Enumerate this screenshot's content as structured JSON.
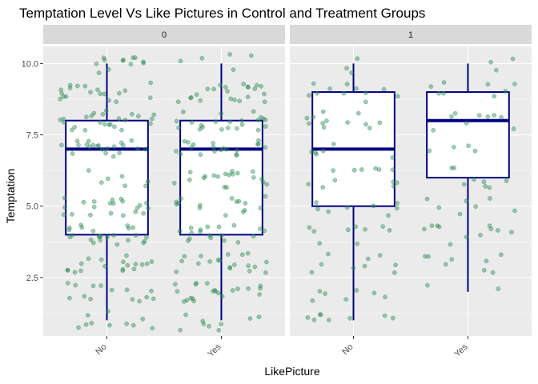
{
  "chart_data": {
    "type": "boxplot",
    "title": "Temptation Level Vs Like Pictures in Control and Treatment Groups",
    "xlabel": "LikePicture",
    "ylabel": "Temptation",
    "categories": [
      "No",
      "Yes"
    ],
    "yticks": [
      2.5,
      5.0,
      7.5,
      10.0
    ],
    "ytick_labels": [
      "2.5",
      "5.0",
      "7.5",
      "10.0"
    ],
    "ylim": [
      0.45,
      10.6
    ],
    "grid": true,
    "colors": {
      "panel_bg": "#ebebeb",
      "grid": "#ffffff",
      "strip_bg": "#d9d9d9",
      "box_line": "#000080",
      "box_fill": "#ffffff",
      "points": "#2e8b57"
    },
    "panels": [
      {
        "label": "0",
        "boxes": [
          {
            "category": "No",
            "min": 1.0,
            "q1": 4.0,
            "median": 7.0,
            "q3": 8.0,
            "max": 10.0
          },
          {
            "category": "Yes",
            "min": 1.0,
            "q1": 4.0,
            "median": 7.0,
            "q3": 8.0,
            "max": 10.0
          }
        ],
        "point_counts": [
          170,
          170
        ]
      },
      {
        "label": "1",
        "boxes": [
          {
            "category": "No",
            "min": 1.0,
            "q1": 5.0,
            "median": 7.0,
            "q3": 9.0,
            "max": 10.0
          },
          {
            "category": "Yes",
            "min": 2.0,
            "q1": 6.0,
            "median": 8.0,
            "q3": 9.0,
            "max": 10.0
          }
        ],
        "point_counts": [
          85,
          60
        ]
      }
    ]
  }
}
